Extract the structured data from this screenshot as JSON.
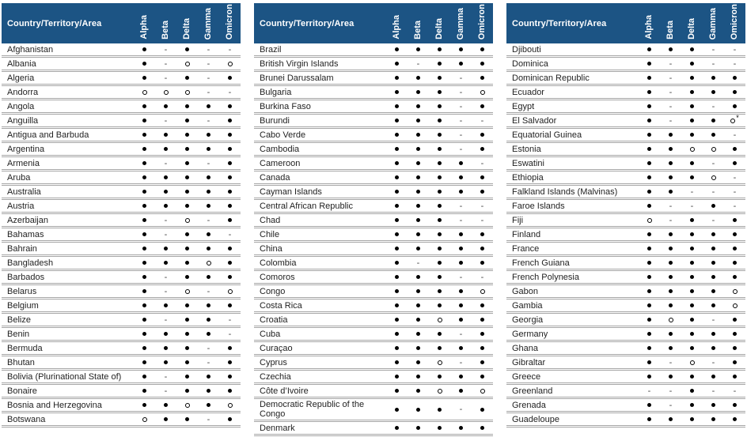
{
  "colors": {
    "header_bg": "#1C5484",
    "header_text": "#ffffff",
    "row_text": "#1f1f1f",
    "grid_line": "#a6a6a6",
    "dot": "#000000"
  },
  "table_header": {
    "name_label": "Country/Territory/Area",
    "columns": [
      "Alpha",
      "Beta",
      "Delta",
      "Gamma",
      "Omicron"
    ]
  },
  "symbols": {
    "filled": "●",
    "open": "○",
    "none": "-",
    "open_asterisk": "○*"
  },
  "tables": [
    {
      "rows": [
        {
          "name": "Afghanistan",
          "values": [
            "●",
            "-",
            "●",
            "-",
            "-"
          ]
        },
        {
          "name": "Albania",
          "values": [
            "●",
            "-",
            "○",
            "-",
            "○"
          ]
        },
        {
          "name": "Algeria",
          "values": [
            "●",
            "-",
            "●",
            "-",
            "●"
          ]
        },
        {
          "name": "Andorra",
          "values": [
            "○",
            "○",
            "○",
            "-",
            "-"
          ]
        },
        {
          "name": "Angola",
          "values": [
            "●",
            "●",
            "●",
            "●",
            "●"
          ]
        },
        {
          "name": "Anguilla",
          "values": [
            "●",
            "-",
            "●",
            "-",
            "●"
          ]
        },
        {
          "name": "Antigua and Barbuda",
          "values": [
            "●",
            "●",
            "●",
            "●",
            "●"
          ]
        },
        {
          "name": "Argentina",
          "values": [
            "●",
            "●",
            "●",
            "●",
            "●"
          ]
        },
        {
          "name": "Armenia",
          "values": [
            "●",
            "-",
            "●",
            "-",
            "●"
          ]
        },
        {
          "name": "Aruba",
          "values": [
            "●",
            "●",
            "●",
            "●",
            "●"
          ]
        },
        {
          "name": "Australia",
          "values": [
            "●",
            "●",
            "●",
            "●",
            "●"
          ]
        },
        {
          "name": "Austria",
          "values": [
            "●",
            "●",
            "●",
            "●",
            "●"
          ]
        },
        {
          "name": "Azerbaijan",
          "values": [
            "●",
            "-",
            "○",
            "-",
            "●"
          ]
        },
        {
          "name": "Bahamas",
          "values": [
            "●",
            "-",
            "●",
            "●",
            "-"
          ]
        },
        {
          "name": "Bahrain",
          "values": [
            "●",
            "●",
            "●",
            "●",
            "●"
          ]
        },
        {
          "name": "Bangladesh",
          "values": [
            "●",
            "●",
            "●",
            "○",
            "●"
          ]
        },
        {
          "name": "Barbados",
          "values": [
            "●",
            "-",
            "●",
            "●",
            "●"
          ]
        },
        {
          "name": "Belarus",
          "values": [
            "●",
            "-",
            "○",
            "-",
            "○"
          ]
        },
        {
          "name": "Belgium",
          "values": [
            "●",
            "●",
            "●",
            "●",
            "●"
          ]
        },
        {
          "name": "Belize",
          "values": [
            "●",
            "-",
            "●",
            "●",
            "-"
          ]
        },
        {
          "name": "Benin",
          "values": [
            "●",
            "●",
            "●",
            "●",
            "-"
          ]
        },
        {
          "name": "Bermuda",
          "values": [
            "●",
            "●",
            "●",
            "-",
            "●"
          ]
        },
        {
          "name": "Bhutan",
          "values": [
            "●",
            "●",
            "●",
            "-",
            "●"
          ]
        },
        {
          "name": "Bolivia (Plurinational State of)",
          "values": [
            "●",
            "-",
            "●",
            "●",
            "●"
          ]
        },
        {
          "name": "Bonaire",
          "values": [
            "●",
            "-",
            "●",
            "●",
            "●"
          ]
        },
        {
          "name": "Bosnia and Herzegovina",
          "values": [
            "●",
            "●",
            "○",
            "●",
            "○"
          ]
        },
        {
          "name": "Botswana",
          "values": [
            "○",
            "●",
            "●",
            "-",
            "●"
          ]
        }
      ]
    },
    {
      "rows": [
        {
          "name": "Brazil",
          "values": [
            "●",
            "●",
            "●",
            "●",
            "●"
          ]
        },
        {
          "name": "British Virgin Islands",
          "values": [
            "●",
            "-",
            "●",
            "●",
            "●"
          ]
        },
        {
          "name": "Brunei Darussalam",
          "values": [
            "●",
            "●",
            "●",
            "-",
            "●"
          ]
        },
        {
          "name": "Bulgaria",
          "values": [
            "●",
            "●",
            "●",
            "-",
            "○"
          ]
        },
        {
          "name": "Burkina Faso",
          "values": [
            "●",
            "●",
            "●",
            "-",
            "●"
          ]
        },
        {
          "name": "Burundi",
          "values": [
            "●",
            "●",
            "●",
            "-",
            "-"
          ]
        },
        {
          "name": "Cabo Verde",
          "values": [
            "●",
            "●",
            "●",
            "-",
            "●"
          ]
        },
        {
          "name": "Cambodia",
          "values": [
            "●",
            "●",
            "●",
            "-",
            "●"
          ]
        },
        {
          "name": "Cameroon",
          "values": [
            "●",
            "●",
            "●",
            "●",
            "-"
          ]
        },
        {
          "name": "Canada",
          "values": [
            "●",
            "●",
            "●",
            "●",
            "●"
          ]
        },
        {
          "name": "Cayman Islands",
          "values": [
            "●",
            "●",
            "●",
            "●",
            "●"
          ]
        },
        {
          "name": "Central African Republic",
          "values": [
            "●",
            "●",
            "●",
            "-",
            "-"
          ]
        },
        {
          "name": "Chad",
          "values": [
            "●",
            "●",
            "●",
            "-",
            "-"
          ]
        },
        {
          "name": "Chile",
          "values": [
            "●",
            "●",
            "●",
            "●",
            "●"
          ]
        },
        {
          "name": "China",
          "values": [
            "●",
            "●",
            "●",
            "●",
            "●"
          ]
        },
        {
          "name": "Colombia",
          "values": [
            "●",
            "-",
            "●",
            "●",
            "●"
          ]
        },
        {
          "name": "Comoros",
          "values": [
            "●",
            "●",
            "●",
            "-",
            "-"
          ]
        },
        {
          "name": "Congo",
          "values": [
            "●",
            "●",
            "●",
            "●",
            "○"
          ]
        },
        {
          "name": "Costa Rica",
          "values": [
            "●",
            "●",
            "●",
            "●",
            "●"
          ]
        },
        {
          "name": "Croatia",
          "values": [
            "●",
            "●",
            "○",
            "●",
            "●"
          ]
        },
        {
          "name": "Cuba",
          "values": [
            "●",
            "●",
            "●",
            "-",
            "●"
          ]
        },
        {
          "name": "Curaçao",
          "values": [
            "●",
            "●",
            "●",
            "●",
            "●"
          ]
        },
        {
          "name": "Cyprus",
          "values": [
            "●",
            "●",
            "○",
            "-",
            "●"
          ]
        },
        {
          "name": "Czechia",
          "values": [
            "●",
            "●",
            "●",
            "●",
            "●"
          ]
        },
        {
          "name": "Côte d’Ivoire",
          "values": [
            "●",
            "●",
            "○",
            "●",
            "○"
          ]
        },
        {
          "name": "Democratic Republic of the Congo",
          "values": [
            "●",
            "●",
            "●",
            "-",
            "●"
          ]
        },
        {
          "name": "Denmark",
          "values": [
            "●",
            "●",
            "●",
            "●",
            "●"
          ]
        }
      ]
    },
    {
      "rows": [
        {
          "name": "Djibouti",
          "values": [
            "●",
            "●",
            "●",
            "-",
            "-"
          ]
        },
        {
          "name": "Dominica",
          "values": [
            "●",
            "-",
            "●",
            "-",
            "-"
          ]
        },
        {
          "name": "Dominican Republic",
          "values": [
            "●",
            "-",
            "●",
            "●",
            "●"
          ]
        },
        {
          "name": "Ecuador",
          "values": [
            "●",
            "-",
            "●",
            "●",
            "●"
          ]
        },
        {
          "name": "Egypt",
          "values": [
            "●",
            "-",
            "●",
            "-",
            "●"
          ]
        },
        {
          "name": "El Salvador",
          "values": [
            "●",
            "-",
            "●",
            "●",
            "○*"
          ]
        },
        {
          "name": "Equatorial Guinea",
          "values": [
            "●",
            "●",
            "●",
            "●",
            "-"
          ]
        },
        {
          "name": "Estonia",
          "values": [
            "●",
            "●",
            "○",
            "○",
            "●"
          ]
        },
        {
          "name": "Eswatini",
          "values": [
            "●",
            "●",
            "●",
            "-",
            "●"
          ]
        },
        {
          "name": "Ethiopia",
          "values": [
            "●",
            "●",
            "●",
            "○",
            "-"
          ]
        },
        {
          "name": "Falkland Islands (Malvinas)",
          "values": [
            "●",
            "●",
            "-",
            "-",
            "-"
          ]
        },
        {
          "name": "Faroe Islands",
          "values": [
            "●",
            "-",
            "-",
            "●",
            "-"
          ]
        },
        {
          "name": "Fiji",
          "values": [
            "○",
            "-",
            "●",
            "-",
            "●"
          ]
        },
        {
          "name": "Finland",
          "values": [
            "●",
            "●",
            "●",
            "●",
            "●"
          ]
        },
        {
          "name": "France",
          "values": [
            "●",
            "●",
            "●",
            "●",
            "●"
          ]
        },
        {
          "name": "French Guiana",
          "values": [
            "●",
            "●",
            "●",
            "●",
            "●"
          ]
        },
        {
          "name": "French Polynesia",
          "values": [
            "●",
            "●",
            "●",
            "●",
            "●"
          ]
        },
        {
          "name": "Gabon",
          "values": [
            "●",
            "●",
            "●",
            "●",
            "○"
          ]
        },
        {
          "name": "Gambia",
          "values": [
            "●",
            "●",
            "●",
            "●",
            "○"
          ]
        },
        {
          "name": "Georgia",
          "values": [
            "●",
            "○",
            "●",
            "-",
            "●"
          ]
        },
        {
          "name": "Germany",
          "values": [
            "●",
            "●",
            "●",
            "●",
            "●"
          ]
        },
        {
          "name": "Ghana",
          "values": [
            "●",
            "●",
            "●",
            "●",
            "●"
          ]
        },
        {
          "name": "Gibraltar",
          "values": [
            "●",
            "-",
            "○",
            "-",
            "●"
          ]
        },
        {
          "name": "Greece",
          "values": [
            "●",
            "●",
            "●",
            "●",
            "●"
          ]
        },
        {
          "name": "Greenland",
          "values": [
            "-",
            "-",
            "●",
            "-",
            "-"
          ]
        },
        {
          "name": "Grenada",
          "values": [
            "●",
            "-",
            "●",
            "●",
            "●"
          ]
        },
        {
          "name": "Guadeloupe",
          "values": [
            "●",
            "●",
            "●",
            "●",
            "●"
          ]
        }
      ]
    }
  ]
}
